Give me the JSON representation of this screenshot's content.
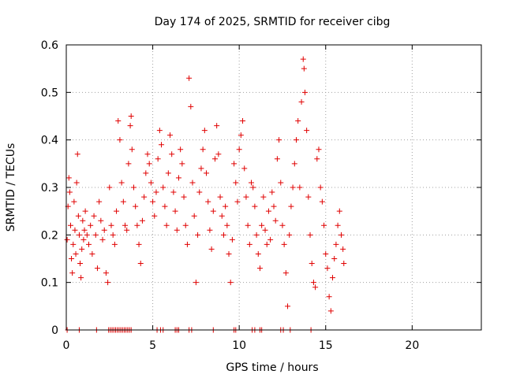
{
  "chart_data": {
    "type": "scatter",
    "title": "Day 174 of 2025, SRMTID for receiver cibg",
    "xlabel": "GPS time / hours",
    "ylabel": "SRMTID / TECUs",
    "xlim": [
      0,
      24
    ],
    "ylim": [
      0,
      0.6
    ],
    "x_ticks": [
      "0",
      "5",
      "10",
      "15",
      "20"
    ],
    "y_ticks": [
      "0",
      "0.1",
      "0.2",
      "0.3",
      "0.4",
      "0.5",
      "0.6"
    ],
    "grid": true,
    "marker": "plus",
    "series": [
      {
        "name": "SRMTID",
        "color": "#e00000",
        "points": [
          [
            0.05,
            0.19
          ],
          [
            0.1,
            0.26
          ],
          [
            0.15,
            0.32
          ],
          [
            0.2,
            0.29
          ],
          [
            0.25,
            0.22
          ],
          [
            0.3,
            0.15
          ],
          [
            0.35,
            0.12
          ],
          [
            0.4,
            0.18
          ],
          [
            0.45,
            0.27
          ],
          [
            0.5,
            0.21
          ],
          [
            0.55,
            0.16
          ],
          [
            0.6,
            0.31
          ],
          [
            0.65,
            0.37
          ],
          [
            0.7,
            0.24
          ],
          [
            0.75,
            0.2
          ],
          [
            0.8,
            0.14
          ],
          [
            0.85,
            0.11
          ],
          [
            0.9,
            0.17
          ],
          [
            0.95,
            0.23
          ],
          [
            1.0,
            0.19
          ],
          [
            1.05,
            0.21
          ],
          [
            1.1,
            0.25
          ],
          [
            1.2,
            0.2
          ],
          [
            1.3,
            0.18
          ],
          [
            1.4,
            0.22
          ],
          [
            1.5,
            0.16
          ],
          [
            1.6,
            0.24
          ],
          [
            1.7,
            0.2
          ],
          [
            1.8,
            0.13
          ],
          [
            1.9,
            0.27
          ],
          [
            2.0,
            0.23
          ],
          [
            2.1,
            0.19
          ],
          [
            2.2,
            0.21
          ],
          [
            2.3,
            0.12
          ],
          [
            2.4,
            0.1
          ],
          [
            2.5,
            0.3
          ],
          [
            2.6,
            0.22
          ],
          [
            2.7,
            0.2
          ],
          [
            2.8,
            0.18
          ],
          [
            2.9,
            0.25
          ],
          [
            3.0,
            0.44
          ],
          [
            3.1,
            0.4
          ],
          [
            3.2,
            0.31
          ],
          [
            3.3,
            0.27
          ],
          [
            3.4,
            0.22
          ],
          [
            3.5,
            0.21
          ],
          [
            3.6,
            0.35
          ],
          [
            3.7,
            0.43
          ],
          [
            3.75,
            0.45
          ],
          [
            3.8,
            0.38
          ],
          [
            3.9,
            0.3
          ],
          [
            4.0,
            0.26
          ],
          [
            4.1,
            0.22
          ],
          [
            4.2,
            0.18
          ],
          [
            4.3,
            0.14
          ],
          [
            4.4,
            0.23
          ],
          [
            4.5,
            0.28
          ],
          [
            4.6,
            0.33
          ],
          [
            4.7,
            0.37
          ],
          [
            4.8,
            0.35
          ],
          [
            4.9,
            0.31
          ],
          [
            5.0,
            0.27
          ],
          [
            5.1,
            0.24
          ],
          [
            5.2,
            0.29
          ],
          [
            5.3,
            0.36
          ],
          [
            5.4,
            0.42
          ],
          [
            5.5,
            0.39
          ],
          [
            5.6,
            0.3
          ],
          [
            5.7,
            0.26
          ],
          [
            5.8,
            0.22
          ],
          [
            5.9,
            0.33
          ],
          [
            6.0,
            0.41
          ],
          [
            6.1,
            0.37
          ],
          [
            6.2,
            0.29
          ],
          [
            6.3,
            0.25
          ],
          [
            6.4,
            0.21
          ],
          [
            6.5,
            0.32
          ],
          [
            6.6,
            0.38
          ],
          [
            6.7,
            0.35
          ],
          [
            6.8,
            0.28
          ],
          [
            6.9,
            0.22
          ],
          [
            7.0,
            0.18
          ],
          [
            7.1,
            0.53
          ],
          [
            7.2,
            0.47
          ],
          [
            7.3,
            0.31
          ],
          [
            7.4,
            0.24
          ],
          [
            7.5,
            0.1
          ],
          [
            7.6,
            0.2
          ],
          [
            7.7,
            0.29
          ],
          [
            7.8,
            0.34
          ],
          [
            7.9,
            0.38
          ],
          [
            8.0,
            0.42
          ],
          [
            8.1,
            0.33
          ],
          [
            8.2,
            0.27
          ],
          [
            8.3,
            0.21
          ],
          [
            8.4,
            0.17
          ],
          [
            8.5,
            0.25
          ],
          [
            8.6,
            0.36
          ],
          [
            8.7,
            0.43
          ],
          [
            8.8,
            0.37
          ],
          [
            8.9,
            0.28
          ],
          [
            9.0,
            0.24
          ],
          [
            9.1,
            0.2
          ],
          [
            9.2,
            0.26
          ],
          [
            9.3,
            0.22
          ],
          [
            9.4,
            0.16
          ],
          [
            9.5,
            0.1
          ],
          [
            9.6,
            0.19
          ],
          [
            9.7,
            0.35
          ],
          [
            9.8,
            0.31
          ],
          [
            9.9,
            0.27
          ],
          [
            10.0,
            0.38
          ],
          [
            10.1,
            0.41
          ],
          [
            10.2,
            0.44
          ],
          [
            10.3,
            0.34
          ],
          [
            10.4,
            0.28
          ],
          [
            10.5,
            0.22
          ],
          [
            10.6,
            0.18
          ],
          [
            10.7,
            0.31
          ],
          [
            10.8,
            0.3
          ],
          [
            10.9,
            0.26
          ],
          [
            11.0,
            0.2
          ],
          [
            11.1,
            0.16
          ],
          [
            11.2,
            0.13
          ],
          [
            11.3,
            0.22
          ],
          [
            11.4,
            0.28
          ],
          [
            11.5,
            0.21
          ],
          [
            11.6,
            0.18
          ],
          [
            11.7,
            0.25
          ],
          [
            11.8,
            0.19
          ],
          [
            11.9,
            0.29
          ],
          [
            12.0,
            0.26
          ],
          [
            12.1,
            0.23
          ],
          [
            12.2,
            0.36
          ],
          [
            12.3,
            0.4
          ],
          [
            12.4,
            0.31
          ],
          [
            12.5,
            0.22
          ],
          [
            12.6,
            0.18
          ],
          [
            12.7,
            0.12
          ],
          [
            12.8,
            0.05
          ],
          [
            12.9,
            0.2
          ],
          [
            13.0,
            0.26
          ],
          [
            13.1,
            0.3
          ],
          [
            13.2,
            0.35
          ],
          [
            13.3,
            0.4
          ],
          [
            13.4,
            0.44
          ],
          [
            13.5,
            0.3
          ],
          [
            13.6,
            0.48
          ],
          [
            13.7,
            0.57
          ],
          [
            13.75,
            0.55
          ],
          [
            13.8,
            0.5
          ],
          [
            13.9,
            0.42
          ],
          [
            14.0,
            0.28
          ],
          [
            14.1,
            0.2
          ],
          [
            14.2,
            0.14
          ],
          [
            14.3,
            0.1
          ],
          [
            14.4,
            0.09
          ],
          [
            14.5,
            0.36
          ],
          [
            14.6,
            0.38
          ],
          [
            14.7,
            0.3
          ],
          [
            14.8,
            0.27
          ],
          [
            14.9,
            0.22
          ],
          [
            15.0,
            0.16
          ],
          [
            15.1,
            0.13
          ],
          [
            15.2,
            0.07
          ],
          [
            15.3,
            0.04
          ],
          [
            15.4,
            0.11
          ],
          [
            15.5,
            0.15
          ],
          [
            15.6,
            0.18
          ],
          [
            15.7,
            0.22
          ],
          [
            15.8,
            0.25
          ],
          [
            15.9,
            0.2
          ],
          [
            16.0,
            0.17
          ],
          [
            16.05,
            0.14
          ]
        ]
      }
    ],
    "zero_markers_x": [
      0.05,
      0.75,
      1.75,
      2.45,
      2.55,
      2.65,
      2.75,
      2.85,
      2.95,
      3.05,
      3.15,
      3.25,
      3.35,
      3.45,
      3.55,
      3.65,
      3.75,
      5.25,
      5.45,
      5.6,
      6.3,
      6.4,
      6.5,
      7.1,
      7.25,
      8.5,
      9.7,
      9.8,
      10.75,
      10.9,
      11.2,
      11.3,
      12.4,
      12.55,
      12.95,
      14.15
    ]
  }
}
